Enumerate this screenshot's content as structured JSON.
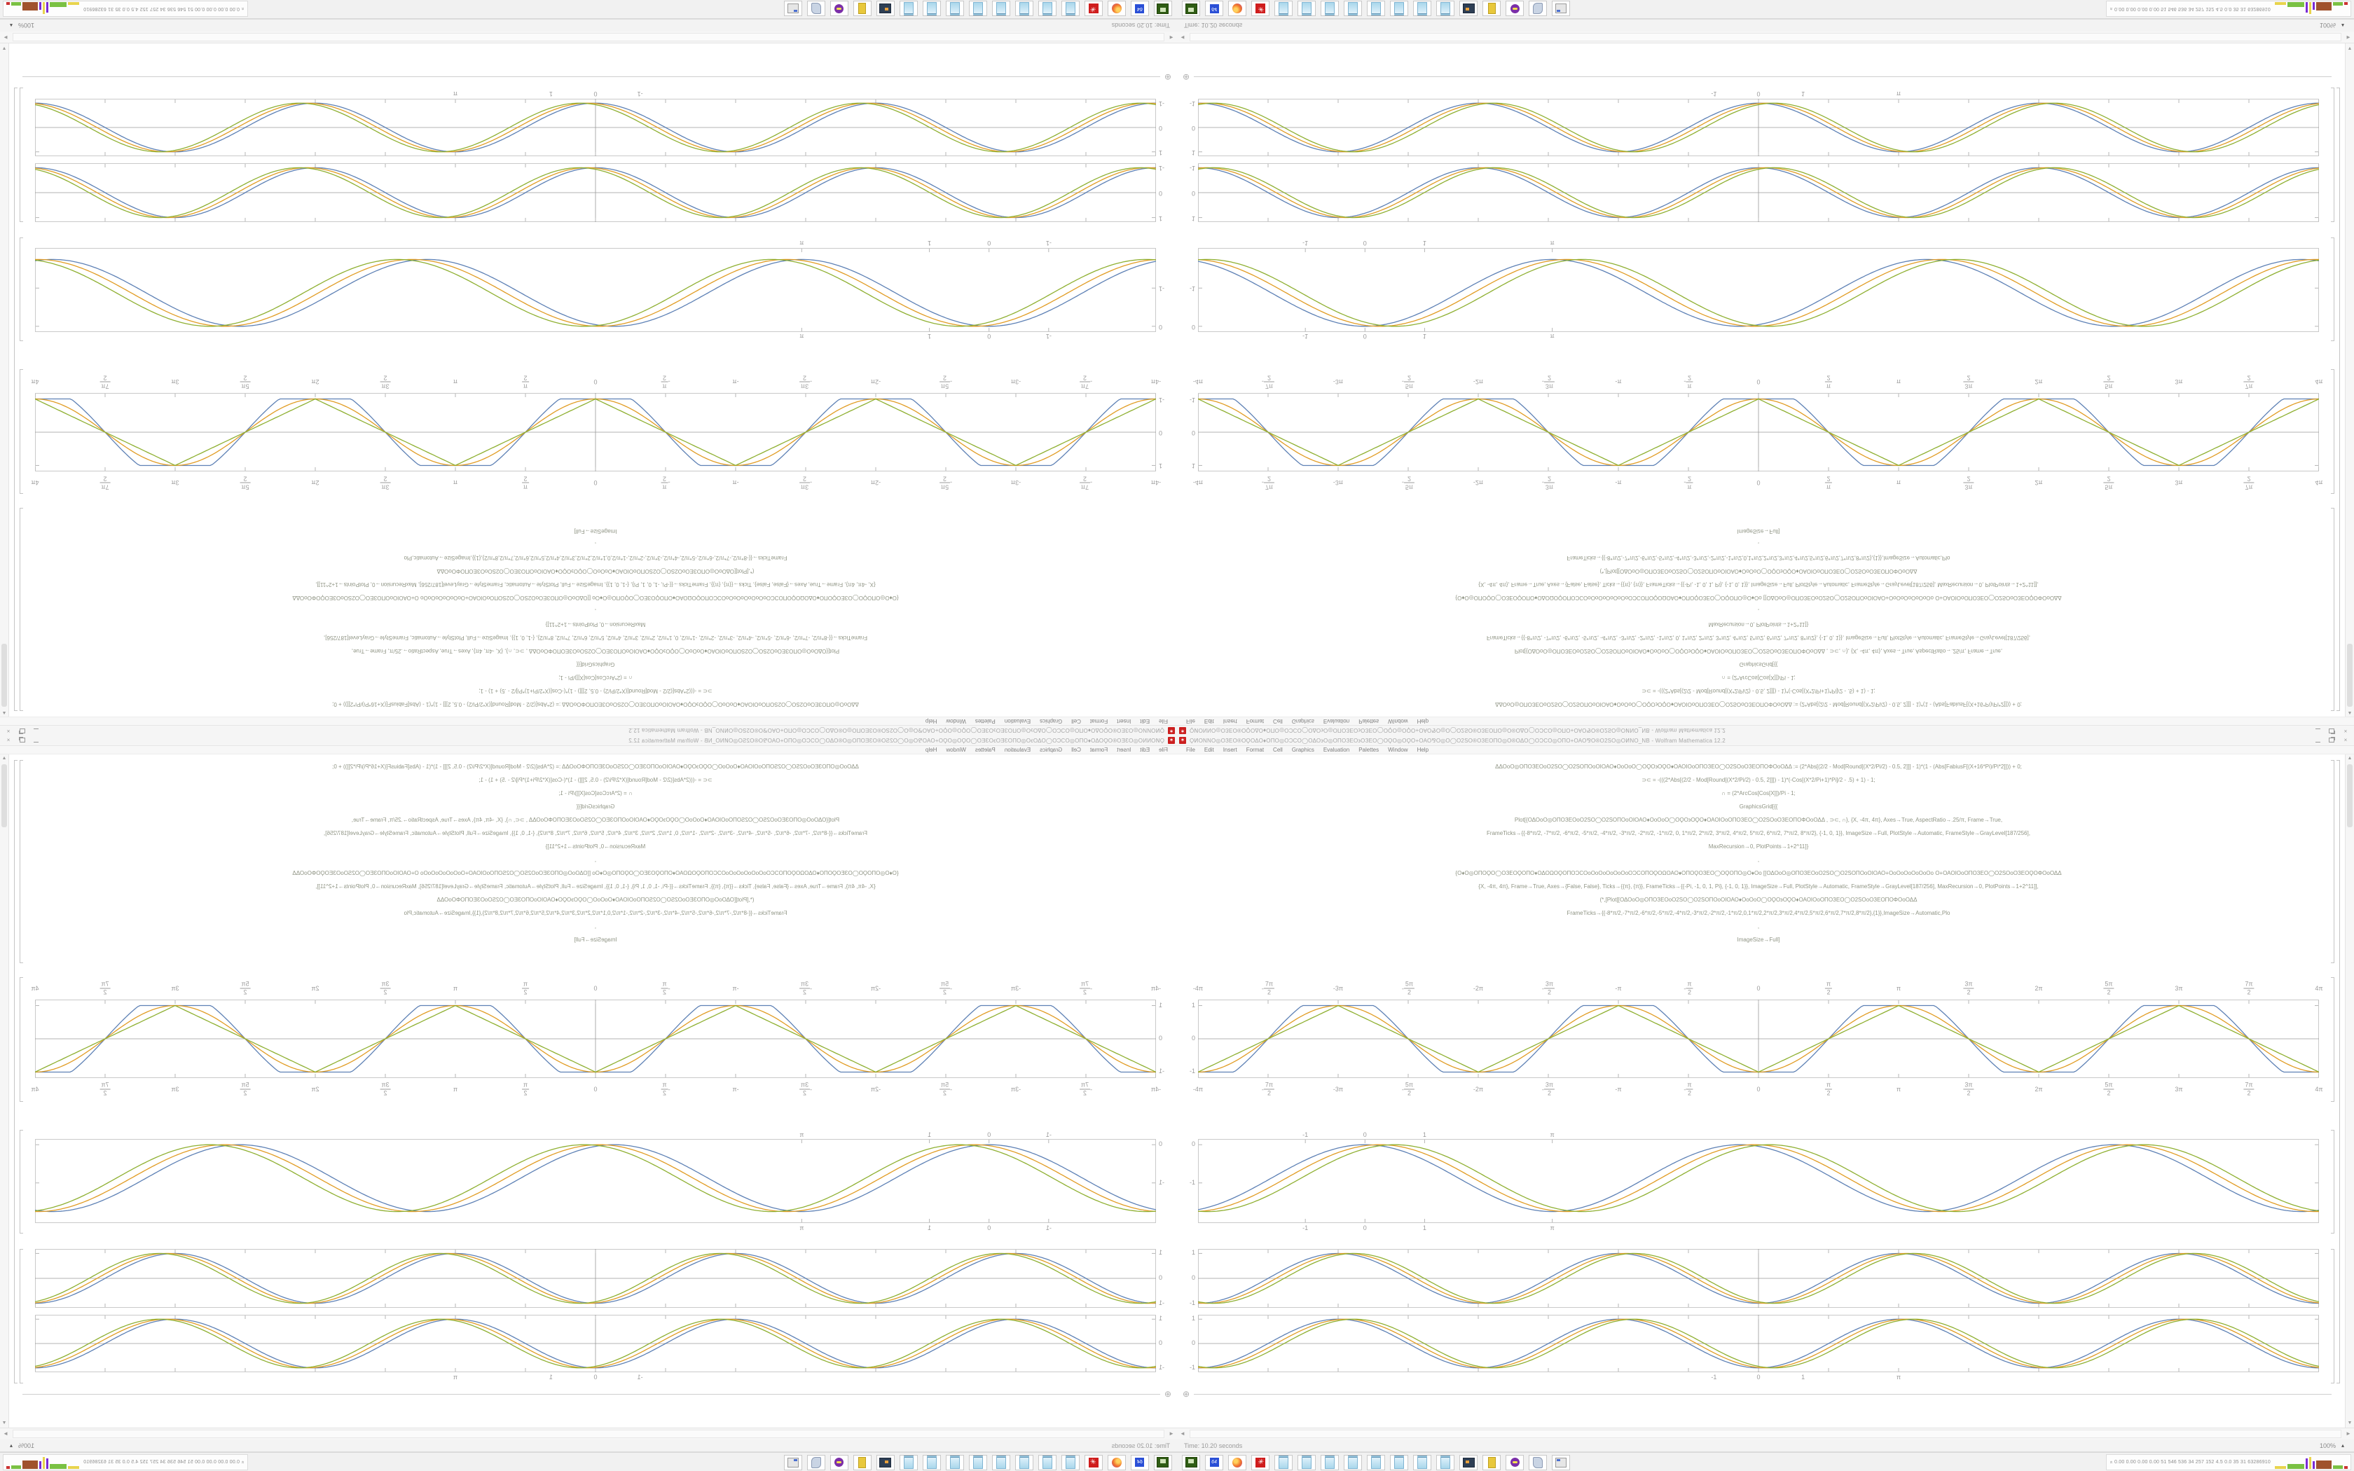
{
  "window": {
    "title": "ϘͶΟΝΝΟ◎ΟЗΕΟ®ΟϘΟΔΟ♦ΟΠΟ◎ΟϽϹΟ◯ΟΔΟ϶Ο◎ΟΠΟЗΕΟ϶ΟЗΕΟ◯ΟϘΟ◎ΟϘΟ+ΟΑΟ⅋Ο◎Ο◯Ο2SΟ®ΟЗΕΟΠΟ◎Ο®ΟΔΟ◯ΟϽϹΟ◎ΟΠΟ+ΟΑΟ⅋Ο®Ο2SΟ◎ΟͶΝΟ_NB - Wolfram Mathematica 12.2",
    "app_icon": "✶",
    "buttons": {
      "minimize": "minimize",
      "restore": "restore",
      "close": "×"
    }
  },
  "menu": {
    "items": [
      "File",
      "Edit",
      "Insert",
      "Format",
      "Cell",
      "Graphics",
      "Evaluation",
      "Palettes",
      "Window",
      "Help"
    ]
  },
  "code_cell": {
    "lines": [
      "ΔΔΟοΟ◎ΟΠΟЗΕΟοΟ2SΟ◯Ο2SΟΠΟοΟΙΟΑΟ♦ΟοΟοΟ◯ΟϘΟ϶ΟϘΟ♦ΟΑΟΙΟοΟΠΟЗΕΟ◯Ο2SΟοΟЗΕΟΠΟΦΟοΟΔΔ  := (2*Abs[(2/2 - Mod[Round[(X*2/Pi/2) - 0.5, 2]]] - 1)*(1 - (Abs[FabiusF[(X+16*Pi)/Pi*2]])) + 0;",
      "⊃⊂ = -(((2*Abs[(2/2 - Mod[Round[(X*2/Pi/2) - 0.5, 2]]]) - 1)*(-Cos[(X*2/Pi+1)*Pi]/2 - .5) + 1) - 1;",
      "∩ = (2*ArcCos[Cos[X]])/Pi - 1;",
      "GraphicsGrid[{{",
      "Plot[{ΟΔΟοΟ◎ΟΠΟЗΕΟοΟ2SΟ◯Ο2SΟΠΟοΟΙΟΑΟ♦ΟοΟοΟ◯ΟϘΟ϶ΟϘΟ♦ΟΑΟΙΟοΟΠΟЗΕΟ◯Ο2SΟοΟЗΕΟΠΟΦΟοΟΔΔ , ⊃⊂, ∩}, {X, -4π, 4π}, Axes→True, AspectRatio→.25/π, Frame→True,",
      "FrameTicks→{{-8*π/2, -7*π/2, -6*π/2, -5*π/2, -4*π/2, -3*π/2, -2*π/2, -1*π/2, 0, 1*π/2, 2*π/2, 3*π/2, 4*π/2, 5*π/2, 6*π/2, 7*π/2, 8*π/2}, {-1, 0, 1}}, ImageSize→Full, PlotStyle→Automatic, FrameStyle→GrayLevel[187/256],",
      "MaxRecursion→0, PlotPoints→1+2^11]}",
      ",",
      "{Ο♦Ο◎ΟΠΟϘΟ◯ΟЗΕΟϘΟΠΟ♦ΟΔΟΩΟϘΟΠΟϽϹΟοΟοΟοΟοΟοΟοΟϽϹΟΠΟϘΟΩΟΑΟ♦ΟΠΟϘΟЗΕΟ◯ΟϘΟΠΟ◎Ο♦Οο  [[ΟΔΟοΟ◎ΟΠΟЗΕΟοΟ2SΟ◯Ο2SΟΠΟοΟΙΟΑΟ+ΟοΟοΟοΟοΟοΟο Ο+ΟΑΟΙΟοΟΠΟЗΕΟ◯Ο2SΟοΟЗΕΟϘΟΦΟοΟΔΔ",
      "{X, -4π, 4π}, Frame→True, Axes→{False, False}, Ticks→{{π}, {π}}, FrameTicks→{{-Pi, -1, 0, 1, Pi}, {-1, 0, 1}}, ImageSize→Full, PlotStyle→Automatic, FrameStyle→GrayLevel[187/256], MaxRecursion→0, PlotPoints→1+2^11]],",
      "(*,[Plot[[ΟΔΟοΟ◎ΟΠΟЗΕΟοΟ2SΟ◯Ο2SΟΠΟοΟΙΟΑΟ♦ΟοΟοΟ◯ΟϘΟ϶ΟϘΟ♦ΟΑΟΙΟοΟΠΟЗΕΟ◯Ο2SΟοΟЗΕΟΠΟΦΟοΟΔΔ",
      "FrameTicks→{{-8*π/2,-7*π/2,-6*π/2,-5*π/2,-4*π/2,-3*π/2,-2*π/2,-1*π/2,0,1*π/2,2*π/2,3*π/2,4*π/2,5*π/2,6*π/2,7*π/2,8*π/2},{1}},ImageSize→Automatic,Plo",
      ",",
      "ImageSize→Full]"
    ]
  },
  "chart_data": {
    "type": "line",
    "description": "Mathematica notebook output plots: families of phase-aligned periodic waves (triangle wave, negated cosine, Fabius-smoothed flat-top wave) on x ∈ [-4π, 4π], plus a deep shifted-cosine plot",
    "shared_x_labels": {
      "piHalf": [
        {
          "x": -12.5664,
          "p": "-4π"
        },
        {
          "x": -10.9956,
          "f": [
            "7π",
            "2"
          ],
          "n": true
        },
        {
          "x": -9.4248,
          "p": "-3π"
        },
        {
          "x": -7.854,
          "f": [
            "5π",
            "2"
          ],
          "n": true
        },
        {
          "x": -6.2832,
          "p": "-2π"
        },
        {
          "x": -4.7124,
          "f": [
            "3π",
            "2"
          ],
          "n": true
        },
        {
          "x": -3.1416,
          "p": "-π"
        },
        {
          "x": -1.5708,
          "f": [
            "π",
            "2"
          ],
          "n": true
        },
        {
          "x": 0,
          "p": "0"
        },
        {
          "x": 1.5708,
          "f": [
            "π",
            "2"
          ]
        },
        {
          "x": 3.1416,
          "p": "π"
        },
        {
          "x": 4.7124,
          "f": [
            "3π",
            "2"
          ]
        },
        {
          "x": 6.2832,
          "p": "2π"
        },
        {
          "x": 7.854,
          "f": [
            "5π",
            "2"
          ]
        },
        {
          "x": 9.4248,
          "p": "3π"
        },
        {
          "x": 10.9956,
          "f": [
            "7π",
            "2"
          ]
        },
        {
          "x": 12.5664,
          "p": "4π"
        }
      ],
      "unitPi": [
        {
          "x": -1,
          "p": "-1"
        },
        {
          "x": 0,
          "p": "0"
        },
        {
          "x": 1,
          "p": "1"
        },
        {
          "x": 3.1416,
          "p": "π"
        }
      ]
    },
    "plots": [
      {
        "name": "out-plot-grid1-row1",
        "top": 318,
        "frame_h": 112,
        "x_min": -12.5664,
        "x_max": 12.5664,
        "y_min": -1.18,
        "y_max": 1.18,
        "labels_above": "piHalf",
        "labels_below": "piHalf",
        "label_style": "frac",
        "axes": true,
        "x_tick_step": 1.5708,
        "y_ticks": [
          {
            "v": 1,
            "t": "1"
          },
          {
            "v": 0,
            "t": "0"
          },
          {
            "v": -1,
            "t": "-1"
          }
        ],
        "series": [
          {
            "legend": "FabiusF smoothed square wave",
            "type": "flattop",
            "phase": 0,
            "color": "#5e81b5"
          },
          {
            "legend": "-Cos wave",
            "type": "negcos",
            "phase": 0,
            "color": "#e19c24"
          },
          {
            "legend": "(2*ArcCos[Cos[X]])/Pi - 1 triangle wave",
            "type": "triangle",
            "phase": 0,
            "color": "#8fb032"
          }
        ]
      },
      {
        "name": "out-plot-grid1-row2",
        "top": 536,
        "frame_h": 120,
        "x_min": -2.8,
        "x_max": 16,
        "y_min": -2.05,
        "y_max": 0.15,
        "labels_above": "unitPi",
        "labels_below": "unitPi",
        "label_style": "plain",
        "axes": false,
        "x_ticks": [
          -1,
          0,
          1,
          3.1416
        ],
        "y_ticks": [
          {
            "v": 0,
            "t": "0"
          },
          {
            "v": -1,
            "t": "-1"
          }
        ],
        "series": [
          {
            "legend": "shifted cosine minus one",
            "type": "cosminus1",
            "phase": 0,
            "color": "#5e81b5"
          },
          {
            "legend": "shifted cosine minus one",
            "type": "cosminus1",
            "phase": 0.25,
            "color": "#e19c24"
          },
          {
            "legend": "shifted cosine minus one",
            "type": "cosminus1",
            "phase": 0.5,
            "color": "#8fb032"
          }
        ]
      },
      {
        "name": "out-plot-grid2-row1",
        "top": 706,
        "frame_h": 84,
        "x_min": -12.5664,
        "x_max": 12.5664,
        "y_min": -1.18,
        "y_max": 1.18,
        "labels_above": null,
        "labels_below": null,
        "label_style": "plain",
        "axes": true,
        "x_tick_step": 1.5708,
        "y_ticks": [
          {
            "v": 1,
            "t": "1"
          },
          {
            "v": 0,
            "t": "0"
          },
          {
            "v": -1,
            "t": "-1"
          }
        ],
        "series": [
          {
            "legend": "phase-shifted sine wave",
            "type": "negcos",
            "phase": 0,
            "color": "#5e81b5"
          },
          {
            "legend": "phase-shifted sine wave",
            "type": "negcos",
            "phase": 0.18,
            "color": "#e19c24"
          },
          {
            "legend": "phase-shifted sine wave",
            "type": "negcos",
            "phase": 0.36,
            "color": "#8fb032"
          }
        ]
      },
      {
        "name": "out-plot-grid2-row2",
        "top": 800,
        "frame_h": 82,
        "x_min": -12.5664,
        "x_max": 12.5664,
        "y_min": -1.18,
        "y_max": 1.18,
        "labels_above": null,
        "labels_below": "unitPi",
        "label_style": "plain",
        "axes": true,
        "x_tick_step": 1.5708,
        "y_ticks": [
          {
            "v": 1,
            "t": "1"
          },
          {
            "v": 0,
            "t": "0"
          },
          {
            "v": -1,
            "t": "-1"
          }
        ],
        "series": [
          {
            "legend": "phase-shifted sine wave",
            "type": "negcos",
            "phase": 0,
            "color": "#5e81b5"
          },
          {
            "legend": "phase-shifted sine wave",
            "type": "negcos",
            "phase": 0.18,
            "color": "#e19c24"
          },
          {
            "legend": "phase-shifted sine wave",
            "type": "negcos",
            "phase": 0.36,
            "color": "#8fb032"
          }
        ]
      }
    ]
  },
  "insertion_bar": {
    "plus": "⊕"
  },
  "scrollbars": {
    "up": "▲",
    "down": "▼",
    "left": "◄",
    "right": "►"
  },
  "statusbar": {
    "time": "Time: 10.20 seconds",
    "zoom": "100%",
    "zoom_caret": "▴"
  },
  "taskbar": {
    "buttons": [
      {
        "type": "terminal",
        "name": "terminal-icon"
      },
      {
        "type": "floppy",
        "name": "floppy-64-icon",
        "label": "64"
      },
      {
        "type": "firefox",
        "name": "firefox-icon"
      },
      {
        "type": "gear",
        "name": "settings-icon",
        "label": "✳"
      },
      {
        "type": "notepad",
        "name": "notepad-icon"
      },
      {
        "type": "notepad",
        "name": "notepad-icon"
      },
      {
        "type": "notepad",
        "name": "notepad-icon"
      },
      {
        "type": "notepad",
        "name": "notepad-icon"
      },
      {
        "type": "notepad",
        "name": "notepad-icon"
      },
      {
        "type": "notepad",
        "name": "notepad-icon"
      },
      {
        "type": "notepad",
        "name": "notepad-icon"
      },
      {
        "type": "notepad",
        "name": "notepad-icon"
      },
      {
        "type": "monitor",
        "name": "monitor-icon"
      },
      {
        "type": "folder",
        "name": "folder-icon"
      },
      {
        "type": "purple",
        "name": "purple-app-icon"
      },
      {
        "type": "scroll",
        "name": "scroll-icon"
      },
      {
        "type": "window",
        "name": "window-icon"
      }
    ],
    "monitor": {
      "chevron": "«",
      "text": "0.00 0.00 0.00 0.00   51   546 536   34   257 152   4.5   0.0   35   31   63286910",
      "graphs": [
        {
          "c": "#e8d44d",
          "w": 16,
          "h": 4
        },
        {
          "c": "#7ac143",
          "w": 24,
          "h": 7
        },
        {
          "c": "#7a2bd6",
          "w": 3,
          "h": 15
        },
        {
          "c": "#e8d44d",
          "w": 3,
          "h": 17
        },
        {
          "c": "#7a2bd6",
          "w": 3,
          "h": 11
        },
        {
          "c": "#a0522d",
          "w": 22,
          "h": 12
        },
        {
          "c": "#7ac143",
          "w": 14,
          "h": 5
        },
        {
          "c": "#cc3333",
          "w": 5,
          "h": 4
        }
      ]
    }
  },
  "colors": {
    "plot_blue": "#5e81b5",
    "plot_orange": "#e19c24",
    "plot_green": "#8fb032",
    "frame_gray": "#c9c9c9",
    "axis_gray": "#9a9a9a",
    "label_gray": "#9b9b9b",
    "code_gray": "#8f9484",
    "spikey_red": "#cc1f1f"
  }
}
